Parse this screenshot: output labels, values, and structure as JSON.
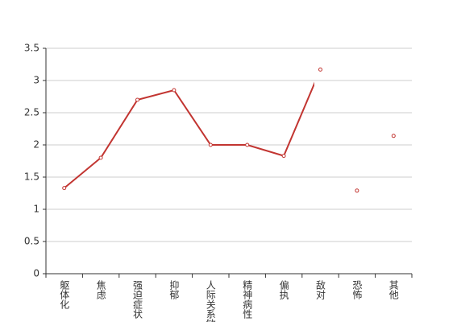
{
  "chart_data": {
    "type": "line",
    "categories": [
      "躯体化",
      "焦虑",
      "强迫症状",
      "抑郁",
      "人际关系敏感",
      "精神病性",
      "偏执",
      "敌对",
      "恐怖",
      "其他"
    ],
    "values": [
      1.33,
      1.8,
      2.7,
      2.85,
      2.0,
      2.0,
      1.83,
      3.17,
      1.29,
      2.14
    ],
    "color": "#c23531",
    "ylim": [
      0,
      3.5
    ],
    "yticks": [
      0,
      0.5,
      1,
      1.5,
      2,
      2.5,
      3,
      3.5
    ],
    "grid": true
  }
}
